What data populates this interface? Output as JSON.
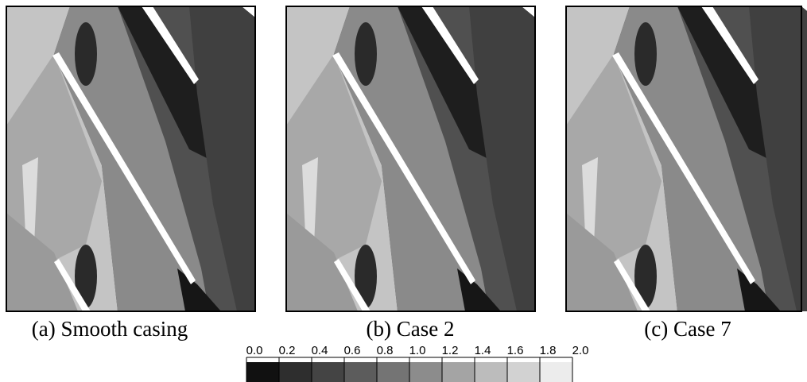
{
  "panels": [
    {
      "caption": "(a) Smooth casing"
    },
    {
      "caption": "(b) Case 2"
    },
    {
      "caption": "(c) Case 7"
    }
  ],
  "colorbar": {
    "ticks": [
      "0.0",
      "0.2",
      "0.4",
      "0.6",
      "0.8",
      "1.0",
      "1.2",
      "1.4",
      "1.6",
      "1.8",
      "2.0"
    ],
    "colors": [
      "#111111",
      "#2e2e2e",
      "#444444",
      "#5c5c5c",
      "#747474",
      "#8c8c8c",
      "#a4a4a4",
      "#bcbcbc",
      "#d2d2d2",
      "#ececec"
    ]
  }
}
